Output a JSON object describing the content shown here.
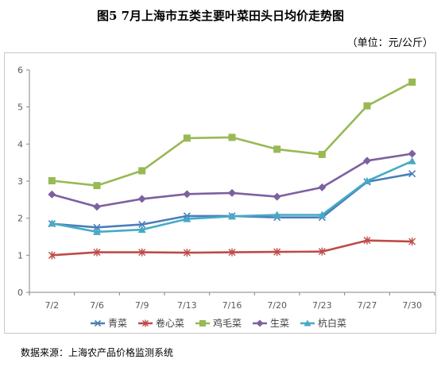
{
  "title": "图5   7月上海市五类主要叶菜田头日均价走势图",
  "unit": "（单位：元/公斤）",
  "source": "数据来源：上海农产品价格监测系统",
  "chart_data": {
    "type": "line",
    "categories": [
      "7/2",
      "7/6",
      "7/9",
      "7/13",
      "7/16",
      "7/20",
      "7/23",
      "7/27",
      "7/30"
    ],
    "ylim": [
      0,
      6
    ],
    "yticks": [
      "0",
      "1",
      "2",
      "3",
      "4",
      "5",
      "6"
    ],
    "grid": false,
    "legend_position": "bottom",
    "series": [
      {
        "name": "青菜",
        "color": "#4a7ebb",
        "marker": "x",
        "values": [
          1.85,
          1.75,
          1.83,
          2.06,
          2.06,
          2.02,
          2.02,
          2.98,
          3.2
        ]
      },
      {
        "name": "卷心菜",
        "color": "#be4b48",
        "marker": "star",
        "values": [
          1.0,
          1.08,
          1.08,
          1.07,
          1.08,
          1.09,
          1.1,
          1.4,
          1.37
        ]
      },
      {
        "name": "鸡毛菜",
        "color": "#98b954",
        "marker": "square",
        "values": [
          3.01,
          2.88,
          3.28,
          4.16,
          4.18,
          3.86,
          3.72,
          5.03,
          5.67
        ]
      },
      {
        "name": "生菜",
        "color": "#7d60a0",
        "marker": "diamond",
        "values": [
          2.64,
          2.31,
          2.52,
          2.65,
          2.68,
          2.58,
          2.83,
          3.55,
          3.74
        ]
      },
      {
        "name": "杭白菜",
        "color": "#46aac5",
        "marker": "triangle",
        "values": [
          1.86,
          1.63,
          1.69,
          1.98,
          2.05,
          2.09,
          2.09,
          3.0,
          3.54
        ]
      }
    ]
  }
}
